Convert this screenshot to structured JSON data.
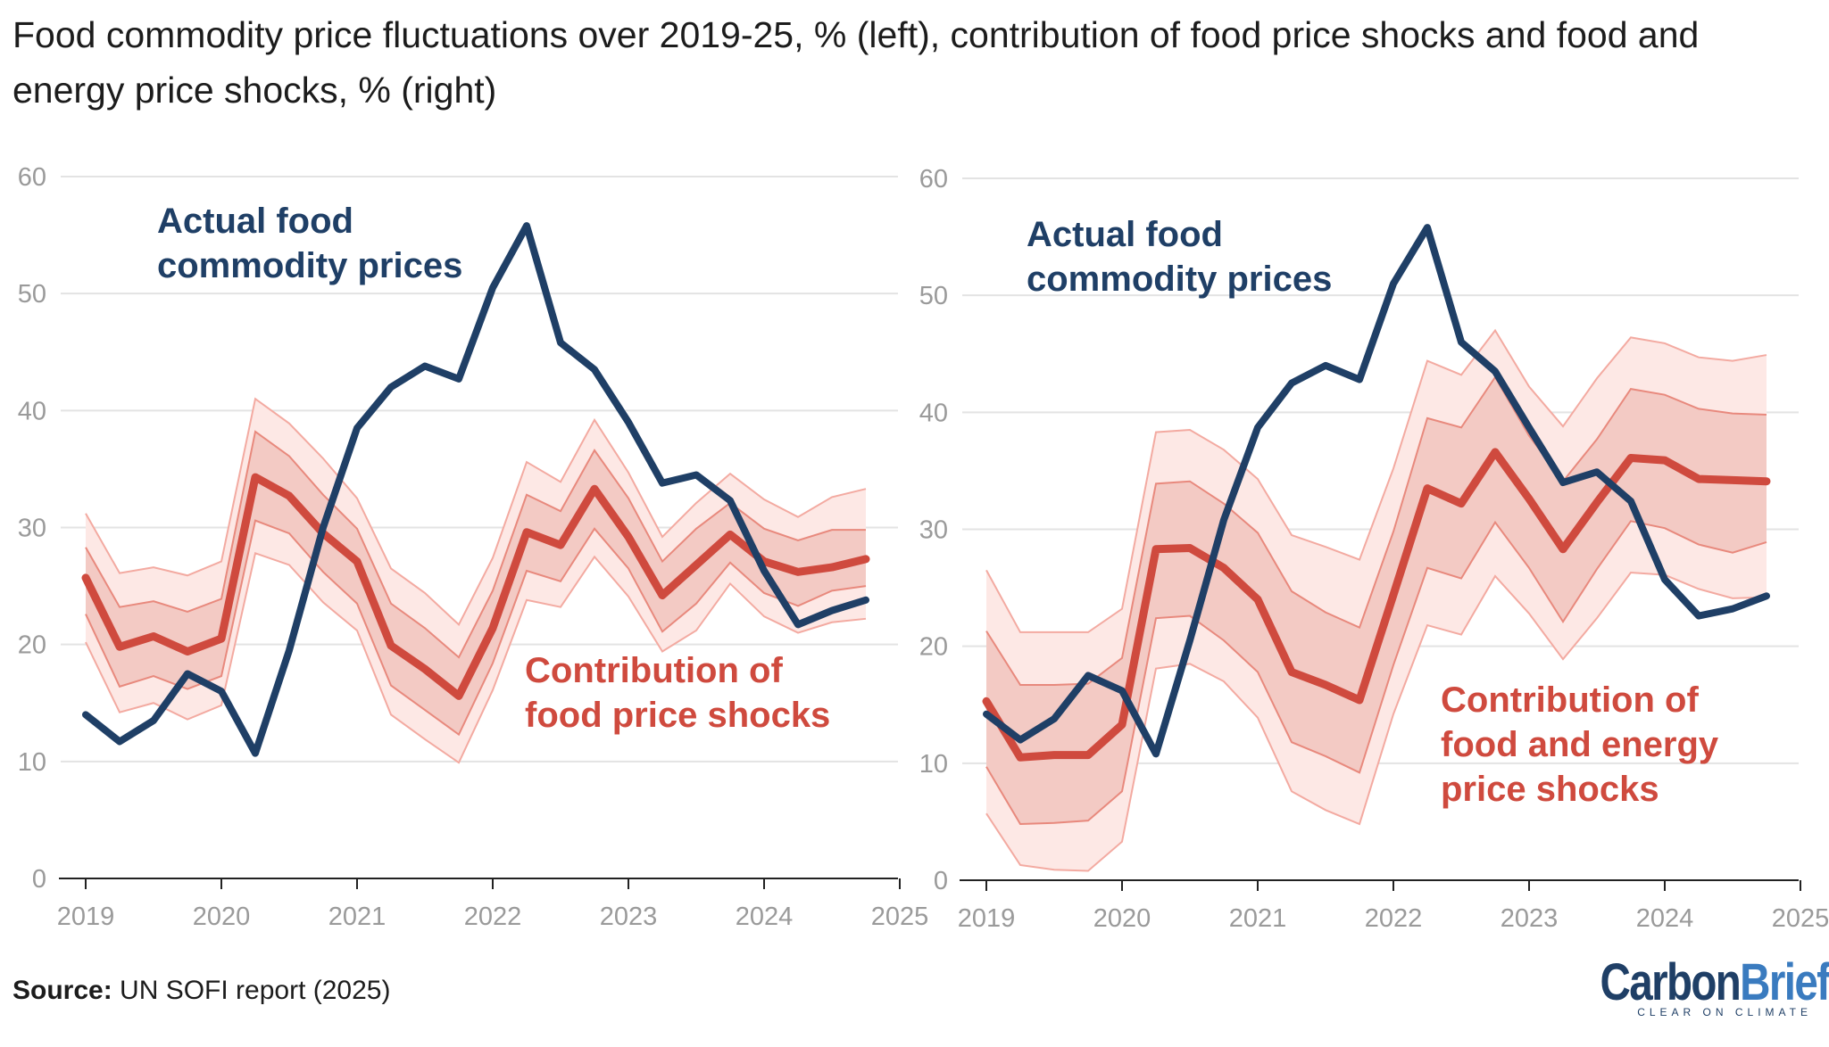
{
  "title": "Food commodity price fluctuations over 2019-25, % (left), contribution of food price shocks and food and energy price shocks, % (right)",
  "source": {
    "label": "Source:",
    "text": " UN SOFI report (2025)"
  },
  "logo": {
    "part1": "Carbon",
    "part2": "Brief",
    "tagline": "CLEAR ON CLIMATE"
  },
  "colors": {
    "actual": "#1f3f66",
    "contribution": "#cf4a3e",
    "band_inner": "#f0c2bb",
    "band_outer": "#fde8e5",
    "band_line": "#e8897d"
  },
  "chart_data": [
    {
      "type": "line",
      "xlabel": "",
      "ylabel": "",
      "xlim": [
        2019,
        2025
      ],
      "ylim": [
        0,
        60
      ],
      "x_ticks": [
        "2019",
        "2020",
        "2021",
        "2022",
        "2023",
        "2024",
        "2025"
      ],
      "y_ticks": [
        "0",
        "10",
        "20",
        "30",
        "40",
        "50",
        "60"
      ],
      "grid": true,
      "x": [
        2019,
        2019.25,
        2019.5,
        2019.75,
        2020,
        2020.25,
        2020.5,
        2020.75,
        2021,
        2021.25,
        2021.5,
        2021.75,
        2022,
        2022.25,
        2022.5,
        2022.75,
        2023,
        2023.25,
        2023.5,
        2023.75,
        2024,
        2024.25,
        2024.5,
        2024.75
      ],
      "actual_label": [
        "Actual food",
        "commodity prices"
      ],
      "contribution_label": [
        "Contribution of",
        "food price shocks"
      ],
      "series": [
        {
          "values": [
            14,
            11.7,
            13.5,
            17.5,
            16,
            10.7,
            19.5,
            30,
            38.5,
            42,
            43.8,
            42.7,
            50.5,
            55.8,
            45.8,
            43.5,
            39,
            33.8,
            34.5,
            32.3,
            26.3,
            21.7,
            22.9,
            23.8
          ]
        },
        {
          "values": [
            25.7,
            19.8,
            20.7,
            19.4,
            20.5,
            34.3,
            32.7,
            29.5,
            27.1,
            19.9,
            17.9,
            15.6,
            21.4,
            29.6,
            28.5,
            33.3,
            29.2,
            24.2,
            26.8,
            29.4,
            27.1,
            26.2,
            26.6,
            27.3
          ]
        }
      ],
      "bands": {
        "outer_upper": [
          31.2,
          26.1,
          26.6,
          25.9,
          27.1,
          41,
          38.9,
          35.9,
          32.5,
          26.5,
          24.4,
          21.7,
          27.4,
          35.6,
          33.9,
          39.2,
          34.7,
          29.2,
          32.1,
          34.6,
          32.4,
          30.9,
          32.6,
          33.3
        ],
        "inner_upper": [
          28.3,
          23.2,
          23.7,
          22.8,
          23.9,
          38.2,
          36.1,
          32.8,
          29.9,
          23.5,
          21.4,
          18.9,
          24.6,
          32.8,
          31.4,
          36.6,
          32.5,
          27.1,
          29.9,
          32.1,
          29.9,
          28.9,
          29.8,
          29.8
        ],
        "inner_lower": [
          22.6,
          16.4,
          17.3,
          16.2,
          17.3,
          30.6,
          29.5,
          26.2,
          23.5,
          16.5,
          14.4,
          12.3,
          18.4,
          26.3,
          25.4,
          29.9,
          26.5,
          21.1,
          23.5,
          27,
          24.4,
          23.3,
          24.6,
          25
        ],
        "outer_lower": [
          20.2,
          14.2,
          15,
          13.6,
          14.8,
          27.8,
          26.8,
          23.6,
          21.2,
          14,
          11.9,
          9.9,
          16.1,
          23.8,
          23.2,
          27.5,
          24.1,
          19.4,
          21.2,
          25.2,
          22.4,
          21,
          21.9,
          22.2
        ]
      }
    },
    {
      "type": "line",
      "xlabel": "",
      "ylabel": "",
      "xlim": [
        2019,
        2025
      ],
      "ylim": [
        0,
        60
      ],
      "x_ticks": [
        "2019",
        "2020",
        "2021",
        "2022",
        "2023",
        "2024",
        "2025"
      ],
      "y_ticks": [
        "0",
        "10",
        "20",
        "30",
        "40",
        "50",
        "60"
      ],
      "grid": true,
      "x": [
        2019,
        2019.25,
        2019.5,
        2019.75,
        2020,
        2020.25,
        2020.5,
        2020.75,
        2021,
        2021.25,
        2021.5,
        2021.75,
        2022,
        2022.25,
        2022.5,
        2022.75,
        2023,
        2023.25,
        2023.5,
        2023.75,
        2024,
        2024.25,
        2024.5,
        2024.75
      ],
      "actual_label": [
        "Actual food",
        "commodity prices"
      ],
      "contribution_label": [
        "Contribution of",
        "food and energy",
        "price shocks"
      ],
      "series": [
        {
          "values": [
            14.2,
            12,
            13.8,
            17.5,
            16.2,
            10.8,
            20.5,
            30.8,
            38.7,
            42.5,
            44,
            42.8,
            51,
            55.8,
            46,
            43.5,
            38.7,
            34,
            34.9,
            32.4,
            25.7,
            22.6,
            23.2,
            24.3
          ]
        },
        {
          "values": [
            15.3,
            10.5,
            10.7,
            10.7,
            13.3,
            28.3,
            28.4,
            26.7,
            24,
            17.8,
            16.7,
            15.4,
            24.4,
            33.5,
            32.2,
            36.6,
            32.6,
            28.3,
            32.3,
            36.1,
            35.9,
            34.3,
            34.2,
            34.1
          ]
        }
      ],
      "bands": {
        "outer_upper": [
          26.5,
          21.2,
          21.2,
          21.2,
          23.2,
          38.3,
          38.5,
          36.8,
          34.3,
          29.5,
          28.5,
          27.4,
          35.2,
          44.4,
          43.2,
          47,
          42.2,
          38.8,
          42.9,
          46.4,
          45.9,
          44.7,
          44.4,
          44.9
        ],
        "inner_upper": [
          21.3,
          16.7,
          16.7,
          16.8,
          19,
          33.9,
          34.1,
          32.2,
          29.7,
          24.7,
          22.9,
          21.6,
          29.8,
          39.5,
          38.7,
          43,
          38,
          34.1,
          37.7,
          42,
          41.5,
          40.3,
          39.9,
          39.8
        ],
        "inner_lower": [
          9.7,
          4.8,
          4.9,
          5.1,
          7.6,
          22.4,
          22.6,
          20.5,
          17.8,
          11.8,
          10.6,
          9.2,
          18.4,
          26.7,
          25.8,
          30.6,
          26.7,
          22.1,
          26.6,
          30.7,
          30.1,
          28.7,
          28,
          28.9
        ],
        "outer_lower": [
          5.7,
          1.3,
          0.9,
          0.8,
          3.3,
          18.1,
          18.5,
          17,
          13.9,
          7.6,
          6,
          4.8,
          14.2,
          21.8,
          21,
          26,
          22.8,
          18.9,
          22.4,
          26.3,
          26.1,
          24.9,
          24.1,
          24.2
        ]
      }
    }
  ]
}
